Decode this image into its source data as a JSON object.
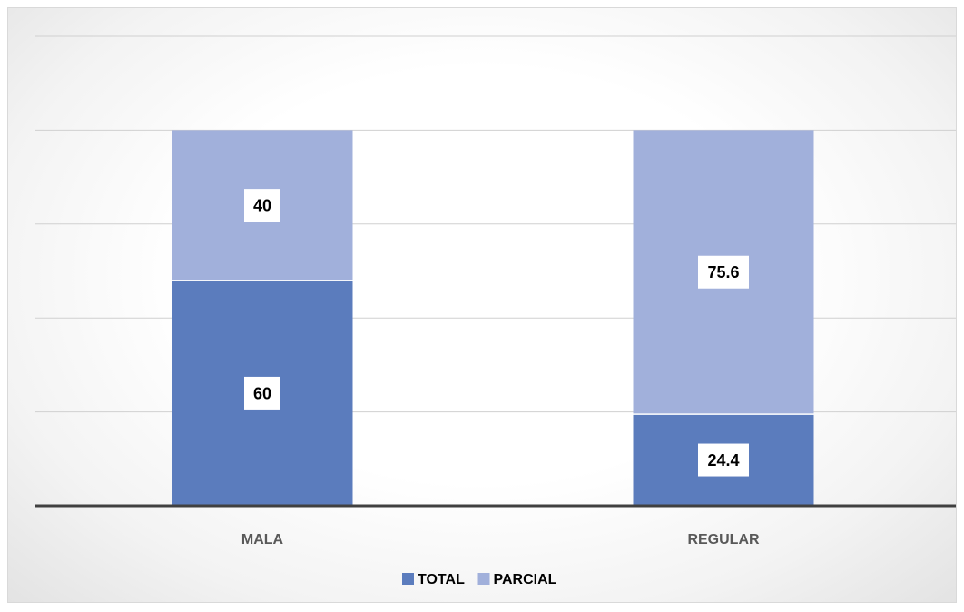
{
  "chart_data": {
    "type": "bar",
    "stacked": true,
    "title": "",
    "xlabel": "",
    "ylabel": "",
    "categories": [
      "MALA",
      "REGULAR"
    ],
    "series": [
      {
        "name": "TOTAL",
        "values": [
          60,
          24.4
        ],
        "color": "#5b7cbd"
      },
      {
        "name": "PARCIAL",
        "values": [
          40,
          75.6
        ],
        "color": "#a1b0db"
      }
    ],
    "ylim": [
      0,
      125
    ],
    "grid": true,
    "legend_position": "bottom"
  }
}
